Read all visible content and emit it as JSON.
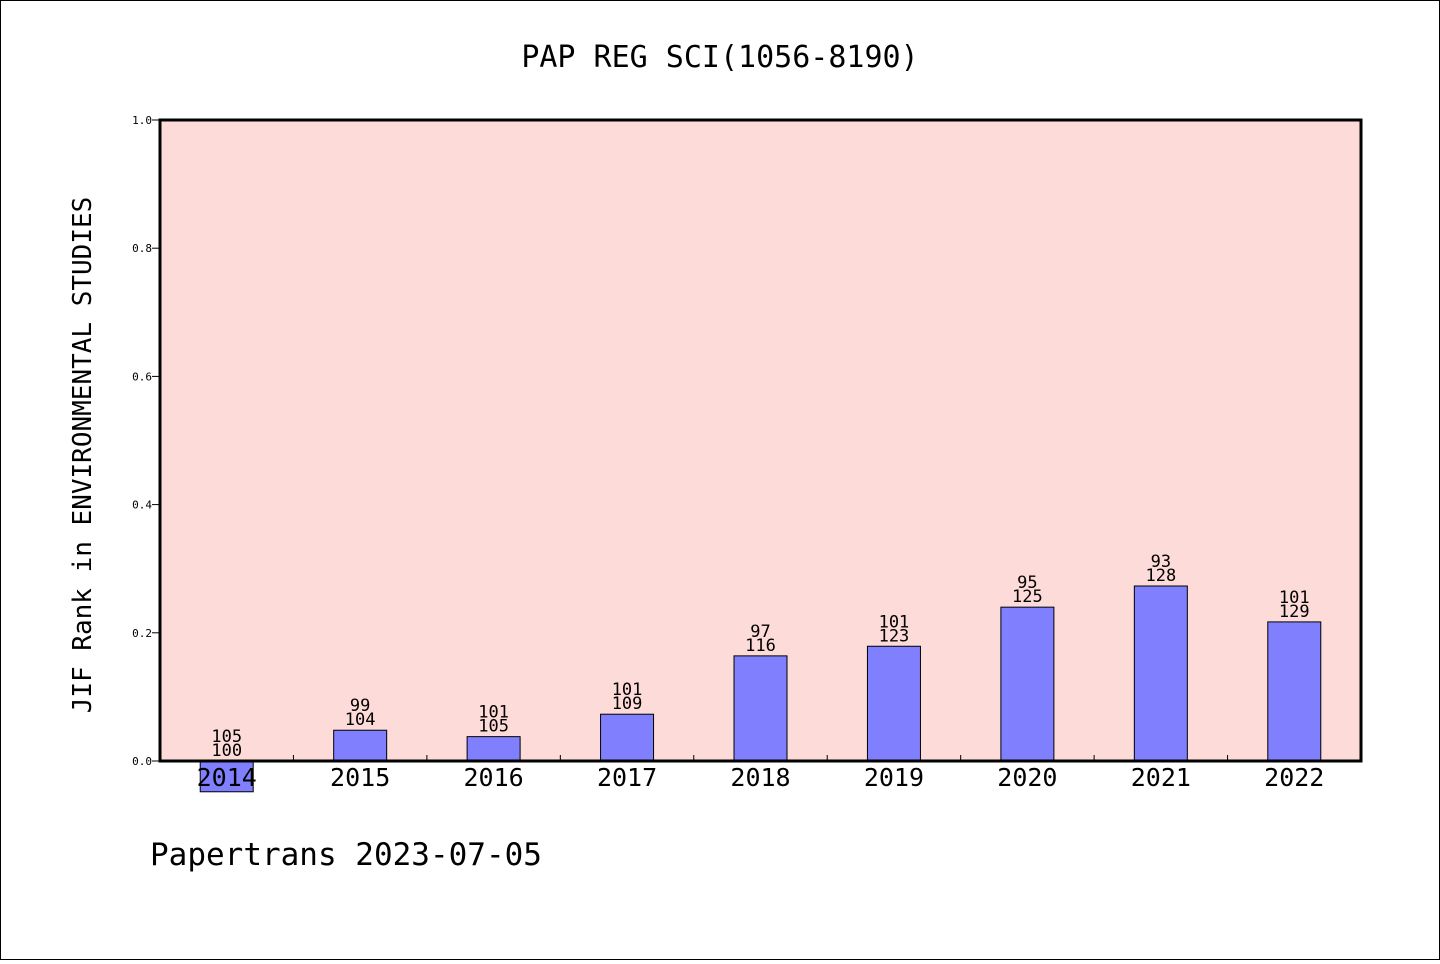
{
  "chart_data": {
    "type": "bar",
    "title": "PAP REG SCI(1056-8190)",
    "ylabel": "JIF Rank in ENVIRONMENTAL STUDIES",
    "xlabel": "",
    "ylim": [
      0.0,
      1.0
    ],
    "yticks": [
      "0.0",
      "0.2",
      "0.4",
      "0.6",
      "0.8",
      "1.0"
    ],
    "ytick_values": [
      0.0,
      0.2,
      0.4,
      0.6,
      0.8,
      1.0
    ],
    "categories": [
      "2014",
      "2015",
      "2016",
      "2017",
      "2018",
      "2019",
      "2020",
      "2021",
      "2022"
    ],
    "values": [
      -0.048,
      0.048,
      0.038,
      0.073,
      0.164,
      0.179,
      0.24,
      0.273,
      0.217
    ],
    "rank_labels": [
      "105",
      "99",
      "101",
      "101",
      "97",
      "101",
      "95",
      "93",
      "101"
    ],
    "total_labels": [
      "100",
      "104",
      "105",
      "109",
      "116",
      "123",
      "125",
      "128",
      "129"
    ],
    "grid": false,
    "colors": {
      "plot_background": "#fddbd8",
      "bar_fill": "#8080ff",
      "bar_stroke": "#000000"
    }
  },
  "footer": {
    "text": "Papertrans 2023-07-05"
  }
}
